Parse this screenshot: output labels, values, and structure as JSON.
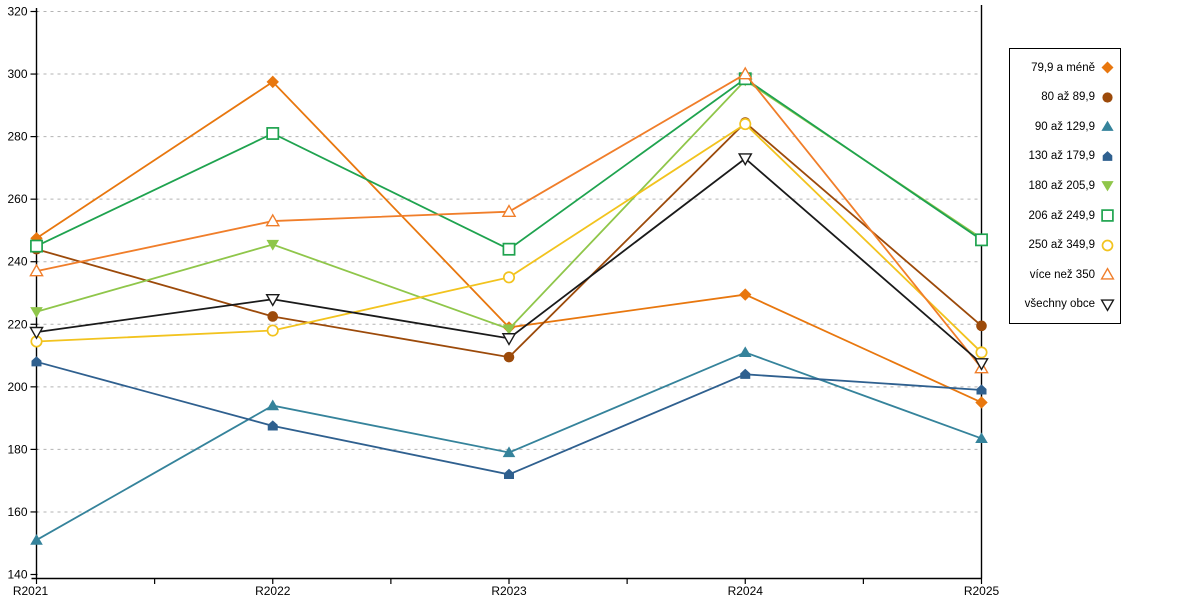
{
  "chart_data": {
    "type": "line",
    "categories": [
      "R2021",
      "R2022",
      "R2023",
      "R2024",
      "R2025"
    ],
    "ylim": [
      140,
      320
    ],
    "yticks": [
      140,
      160,
      180,
      200,
      220,
      240,
      260,
      280,
      300,
      320
    ],
    "grid": "horizontal-dashed",
    "legend_position": "right",
    "axis_color": "#000000",
    "gridline_color": "#b3b3b3",
    "series": [
      {
        "name": "79,9 a méně",
        "marker": "diamond-filled",
        "color": "#e8770e",
        "values": [
          247.5,
          297.5,
          219,
          229.5,
          195
        ]
      },
      {
        "name": "80 až 89,9",
        "marker": "circle-filled",
        "color": "#9c4a0a",
        "values": [
          244,
          222.5,
          209.5,
          284.5,
          219.5
        ]
      },
      {
        "name": "90 až 129,9",
        "marker": "triangle-up-filled",
        "color": "#35839b",
        "values": [
          151,
          194,
          179,
          211,
          183.5
        ]
      },
      {
        "name": "130 až 179,9",
        "marker": "pentagon-filled",
        "color": "#2f608f",
        "values": [
          208,
          187.5,
          172,
          204,
          199
        ]
      },
      {
        "name": "180 až 205,9",
        "marker": "triangle-down-filled",
        "color": "#8fc64a",
        "values": [
          224,
          245.5,
          218.5,
          298,
          247.5
        ]
      },
      {
        "name": "206 až 249,9",
        "marker": "square-open",
        "color": "#1fa34f",
        "values": [
          245,
          281,
          244,
          298.5,
          247
        ]
      },
      {
        "name": "250 až 349,9",
        "marker": "circle-open",
        "color": "#f2c31e",
        "values": [
          214.5,
          218,
          235,
          284,
          211
        ]
      },
      {
        "name": "více než 350",
        "marker": "triangle-up-open",
        "color": "#f07e2a",
        "values": [
          237,
          253,
          256,
          300,
          206
        ]
      },
      {
        "name": "všechny obce",
        "marker": "triangle-down-open",
        "color": "#1a1a1a",
        "values": [
          217.5,
          228,
          215.5,
          273,
          207.5
        ]
      }
    ]
  }
}
